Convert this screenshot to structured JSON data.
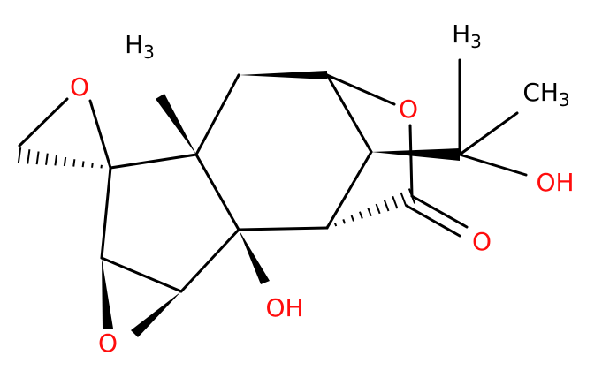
{
  "atoms": [
    {
      "label": "O"
    },
    {
      "label": "H",
      "sub": "3"
    },
    {
      "label": "O"
    },
    {
      "label": "H",
      "sub": "3"
    },
    {
      "label": "CH",
      "sub": "3"
    },
    {
      "label": "OH"
    },
    {
      "label": "O"
    },
    {
      "label": "OH"
    },
    {
      "label": "O"
    }
  ]
}
